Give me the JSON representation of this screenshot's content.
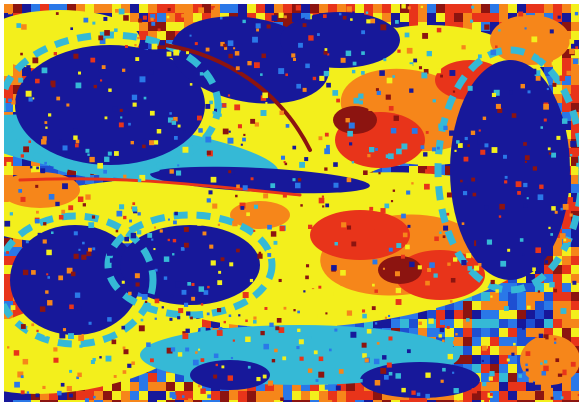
{
  "image": {
    "kind": "false-color heatmap",
    "palette": {
      "background": "#ffffff",
      "deep_blue": "#17189a",
      "blue": "#1e4fd2",
      "medium_blue": "#2a78e8",
      "cyan": "#35b9d6",
      "yellow": "#f3ef1c",
      "orange": "#f6861a",
      "red": "#e8341a",
      "dark_red": "#8c1410"
    }
  }
}
